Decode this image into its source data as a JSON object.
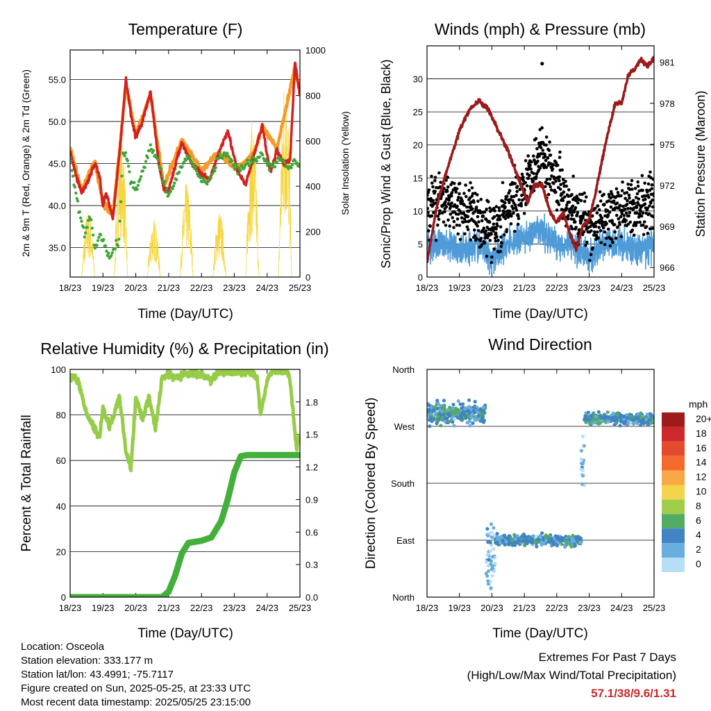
{
  "charts": {
    "temperature": {
      "title": "Temperature (F)",
      "ylabel": "2m & 9m T (Red, Orange) & 2m Td (Green)",
      "ylabel_right": "Solar Insolation (Yellow)",
      "xlabel": "Time (Day/UTC)"
    },
    "winds": {
      "title": "Winds (mph) & Pressure (mb)",
      "ylabel": "Sonic/Prop Wind & Gust (Blue, Black)",
      "ylabel_right": "Station Pressure (Maroon)",
      "xlabel": "Time (Day/UTC)"
    },
    "humidity": {
      "title": "Relative Humidity (%) & Precipitation (in)",
      "ylabel": "Percent & Total Rainfall",
      "xlabel": "Time (Day/UTC)"
    },
    "direction": {
      "title": "Wind Direction",
      "ylabel": "Direction (Colored By Speed)",
      "xlabel": "Time (Day/UTC)",
      "legend_title": "mph"
    }
  },
  "info": {
    "location": "Location: Osceola",
    "elevation": "Station elevation: 333.177 m",
    "latlon": "Station lat/lon: 43.4991; -75.7117",
    "created": "Figure created on Sun, 2025-05-25, at 23:33 UTC",
    "recent": "Most recent data timestamp: 2025/05/25 23:15:00"
  },
  "extremes": {
    "heading": "Extremes For Past 7 Days",
    "subheading": "(High/Low/Max Wind/Total Precipitation)",
    "values": "57.1/38/9.6/1.31"
  },
  "colors": {
    "temp_2m": "#d42020",
    "temp_9m": "#f39c2a",
    "dewpoint": "#3fa535",
    "solar": "#f5d63d",
    "wind": "#4f9bd8",
    "gust": "#000000",
    "pressure": "#9b1a1a",
    "rh": "#96cc48",
    "precip": "#43b03b"
  },
  "chart_data": [
    {
      "type": "line",
      "title": "Temperature (F)",
      "xlabel": "Time (Day/UTC)",
      "ylabel": "2m & 9m T (Red, Orange) & 2m Td (Green)",
      "ylabel_right": "Solar Insolation (Yellow)",
      "x_ticks": [
        "18/23",
        "19/23",
        "20/23",
        "21/23",
        "22/23",
        "23/23",
        "24/23",
        "25/23"
      ],
      "ylim": [
        31.5,
        58.5
      ],
      "y_ticks": [
        35.0,
        40.0,
        45.0,
        50.0,
        55.0
      ],
      "ylim_right": [
        0,
        1000
      ],
      "y_ticks_right": [
        0,
        200,
        400,
        600,
        800,
        1000
      ],
      "grid": "horizontal",
      "series": [
        {
          "name": "2m T",
          "color": "#d42020",
          "axis": "left",
          "x": [
            0,
            0.15,
            0.35,
            0.55,
            0.75,
            0.9,
            1.0,
            1.1,
            1.3,
            1.5,
            1.7,
            1.85,
            2.0,
            2.2,
            2.45,
            2.7,
            2.85,
            3.0,
            3.15,
            3.4,
            3.7,
            4.0,
            4.25,
            4.5,
            4.8,
            5.1,
            5.35,
            5.6,
            5.85,
            6.0,
            6.1,
            6.3,
            6.5,
            6.7,
            6.85,
            7.0
          ],
          "y": [
            46.5,
            44,
            41.5,
            43,
            45,
            43.5,
            40,
            41.5,
            38.5,
            46,
            55,
            51,
            48,
            50,
            53.5,
            45,
            42,
            41.8,
            44,
            47.5,
            45,
            43.8,
            43,
            46,
            49,
            44,
            42.5,
            46,
            49.5,
            46,
            44,
            46.5,
            45,
            45.5,
            57,
            53
          ]
        },
        {
          "name": "9m T",
          "color": "#f39c2a",
          "axis": "left",
          "x": [
            0,
            0.35,
            0.75,
            1.0,
            1.3,
            1.5,
            1.7,
            2.0,
            2.45,
            2.85,
            3.4,
            4.0,
            4.5,
            5.1,
            5.6,
            5.85,
            6.3,
            6.85,
            7.0
          ],
          "y": [
            46.8,
            41.8,
            45.3,
            40.3,
            38.8,
            46.3,
            54.5,
            48.3,
            53.2,
            42.3,
            47.8,
            44.1,
            46.3,
            44.3,
            46.3,
            49.3,
            46.8,
            56.5,
            53.3
          ]
        },
        {
          "name": "2m Td",
          "color": "#3fa535",
          "axis": "left",
          "x": [
            0,
            0.1,
            0.25,
            0.45,
            0.6,
            0.75,
            0.9,
            1.0,
            1.2,
            1.35,
            1.5,
            1.6,
            1.7,
            1.85,
            2.0,
            2.2,
            2.45,
            2.7,
            2.85,
            3.0,
            3.3,
            3.6,
            3.9,
            4.2,
            4.5,
            4.8,
            5.1,
            5.4,
            5.7,
            5.85,
            6.1,
            6.4,
            6.7,
            6.85,
            7.0
          ],
          "y": [
            46,
            43,
            40,
            36.5,
            39,
            35,
            36.5,
            36,
            33.5,
            35,
            36,
            46,
            46,
            43,
            42,
            44,
            47,
            45,
            43,
            41,
            44,
            46,
            43.5,
            42.5,
            45.5,
            46,
            44,
            45,
            45.5,
            46,
            44.5,
            45.5,
            44.5,
            45.5,
            44.5
          ]
        },
        {
          "name": "Solar Insolation",
          "color": "#f5d63d",
          "axis": "right",
          "peaks_x": [
            0.55,
            1.55,
            2.55,
            3.55,
            4.55,
            5.55,
            6.55
          ],
          "peaks_y": [
            300,
            670,
            260,
            420,
            300,
            700,
            940
          ]
        }
      ]
    },
    {
      "type": "scatter",
      "title": "Winds (mph) & Pressure (mb)",
      "xlabel": "Time (Day/UTC)",
      "ylabel": "Sonic/Prop Wind & Gust (Blue, Black)",
      "ylabel_right": "Station Pressure (Maroon)",
      "x_ticks": [
        "18/23",
        "19/23",
        "20/23",
        "21/23",
        "22/23",
        "23/23",
        "24/23",
        "25/23"
      ],
      "ylim": [
        0,
        35
      ],
      "y_ticks": [
        0,
        5,
        10,
        15,
        20,
        25,
        30
      ],
      "ylim_right": [
        965.3,
        982.2
      ],
      "y_ticks_right": [
        966,
        969,
        972,
        975,
        978,
        981
      ],
      "grid": "horizontal",
      "series": [
        {
          "name": "Wind",
          "color": "#4f9bd8",
          "axis": "left",
          "x": [
            0,
            0.5,
            1.0,
            1.5,
            2.0,
            2.5,
            3.0,
            3.5,
            4.0,
            4.5,
            5.0,
            5.5,
            6.0,
            6.5,
            7.0
          ],
          "y": [
            5,
            5,
            4,
            5,
            3,
            5,
            6,
            7,
            5,
            5,
            3,
            5,
            5,
            4,
            5
          ]
        },
        {
          "name": "Gust",
          "color": "#000000",
          "axis": "left",
          "x": [
            0,
            0.5,
            1.0,
            1.5,
            2.0,
            2.5,
            3.0,
            3.5,
            4.0,
            4.5,
            5.0,
            5.5,
            6.0,
            6.5,
            7.0
          ],
          "y": [
            10,
            12,
            11,
            9,
            7,
            10,
            14,
            19,
            15,
            10,
            7,
            9,
            10,
            11,
            12
          ],
          "max": 32.3
        },
        {
          "name": "Station Pressure",
          "color": "#9b1a1a",
          "axis": "right",
          "x": [
            0,
            0.3,
            0.6,
            1.0,
            1.3,
            1.6,
            1.9,
            2.2,
            2.5,
            2.8,
            3.1,
            3.3,
            3.55,
            3.8,
            4.0,
            4.2,
            4.4,
            4.6,
            4.8,
            5.0,
            5.2,
            5.5,
            5.8,
            6.0,
            6.2,
            6.4,
            6.6,
            6.8,
            7.0
          ],
          "y": [
            966.3,
            970.5,
            973,
            976,
            977.5,
            978.2,
            977.5,
            976,
            974.5,
            972.6,
            970.8,
            972,
            972,
            970,
            969.3,
            970,
            968.5,
            967.4,
            969,
            969.5,
            971.5,
            975,
            978,
            978,
            980,
            980.5,
            981.2,
            980.7,
            981.3
          ]
        }
      ]
    },
    {
      "type": "line",
      "title": "Relative Humidity (%) & Precipitation (in)",
      "xlabel": "Time (Day/UTC)",
      "ylabel": "Percent & Total Rainfall",
      "x_ticks": [
        "18/23",
        "19/23",
        "20/23",
        "21/23",
        "22/23",
        "23/23",
        "24/23",
        "25/23"
      ],
      "ylim": [
        0,
        100
      ],
      "y_ticks": [
        0,
        20,
        40,
        60,
        80,
        100
      ],
      "ylim_right": [
        0,
        2.1
      ],
      "y_ticks_right": [
        0.0,
        0.3,
        0.6,
        0.9,
        1.2,
        1.5,
        1.8
      ],
      "grid": "horizontal",
      "series": [
        {
          "name": "Relative Humidity",
          "color": "#96cc48",
          "axis": "left",
          "x": [
            0,
            0.25,
            0.5,
            0.75,
            0.9,
            1.0,
            1.2,
            1.35,
            1.5,
            1.7,
            1.85,
            2.0,
            2.2,
            2.4,
            2.6,
            2.8,
            3.0,
            3.2,
            3.5,
            3.8,
            4.0,
            4.3,
            4.5,
            4.7,
            5.0,
            5.3,
            5.5,
            5.7,
            5.8,
            6.0,
            6.2,
            6.4,
            6.6,
            6.7,
            6.8,
            6.9,
            7.0
          ],
          "y": [
            97,
            95,
            80,
            74,
            70,
            83,
            75,
            81,
            88,
            64,
            56,
            88,
            78,
            88,
            74,
            96,
            98,
            96,
            98,
            98,
            98,
            95,
            98,
            99,
            99,
            99,
            99,
            96,
            80,
            95,
            100,
            99,
            100,
            95,
            80,
            65,
            72
          ]
        },
        {
          "name": "Total Precipitation",
          "color": "#43b03b",
          "axis": "right",
          "x": [
            0,
            2.8,
            3.0,
            3.2,
            3.4,
            3.6,
            4.0,
            4.3,
            4.6,
            4.8,
            5.0,
            5.2,
            5.4,
            5.6,
            5.8,
            6.0,
            6.5,
            7.0
          ],
          "y": [
            0,
            0,
            0.05,
            0.2,
            0.4,
            0.5,
            0.52,
            0.55,
            0.7,
            0.9,
            1.15,
            1.3,
            1.31,
            1.31,
            1.31,
            1.31,
            1.31,
            1.31
          ]
        }
      ]
    },
    {
      "type": "scatter",
      "title": "Wind Direction",
      "xlabel": "Time (Day/UTC)",
      "ylabel": "Direction (Colored By Speed)",
      "x_ticks": [
        "18/23",
        "19/23",
        "20/23",
        "21/23",
        "22/23",
        "23/23",
        "24/23",
        "25/23"
      ],
      "y_ticks": [
        "North",
        "East",
        "South",
        "West",
        "North"
      ],
      "ylim": [
        0,
        360
      ],
      "grid": "horizontal",
      "legend": {
        "title": "mph",
        "labels": [
          "20+",
          "18",
          "16",
          "14",
          "12",
          "10",
          "8",
          "6",
          "4",
          "2",
          "0"
        ],
        "colors": [
          "#9e1b1b",
          "#cc2a2a",
          "#e34a2e",
          "#f46a2c",
          "#f8a845",
          "#f3d44a",
          "#a1cd4b",
          "#54ab64",
          "#4183c3",
          "#6aaddf",
          "#b4dff5"
        ]
      },
      "clusters": [
        {
          "x_start": 0.0,
          "x_end": 1.8,
          "direction_center": 290,
          "spread": 12
        },
        {
          "x_start": 1.8,
          "x_end": 2.1,
          "direction_center": 55,
          "spread": 35
        },
        {
          "x_start": 2.1,
          "x_end": 4.75,
          "direction_center": 90,
          "spread": 6
        },
        {
          "x_start": 4.75,
          "x_end": 4.85,
          "direction_center": 215,
          "spread": 30
        },
        {
          "x_start": 4.85,
          "x_end": 7.0,
          "direction_center": 282,
          "spread": 6
        }
      ]
    }
  ]
}
